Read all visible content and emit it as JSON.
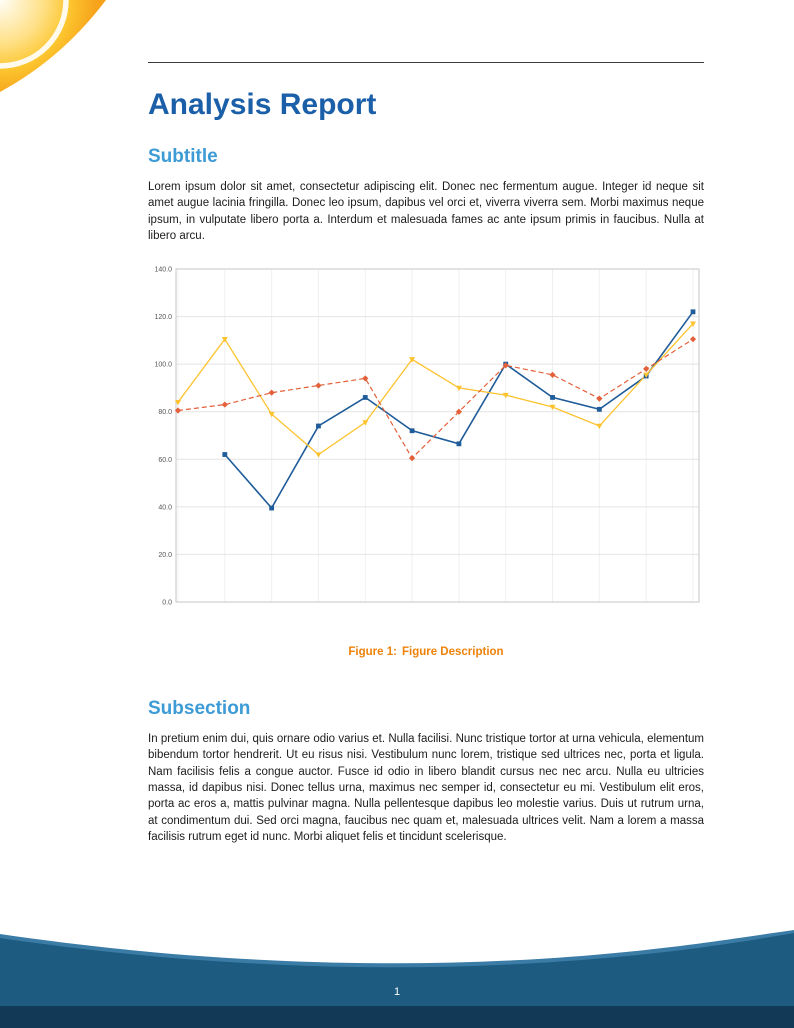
{
  "page": {
    "title": "Analysis Report",
    "page_number": "1"
  },
  "sections": [
    {
      "heading": "Subtitle",
      "body": "Lorem ipsum dolor sit amet, consectetur adipiscing elit. Donec nec fermentum augue. Integer id neque sit amet augue lacinia fringilla. Donec leo ipsum, dapibus vel orci et, viverra viverra sem. Morbi maximus neque ipsum, in vulputate libero porta a. Interdum et malesuada fames ac ante ipsum primis in faucibus. Nulla at libero arcu."
    },
    {
      "heading": "Subsection",
      "body": "In pretium enim dui, quis ornare odio varius et. Nulla facilisi. Nunc tristique tortor at urna vehicula, elementum bibendum tortor hendrerit. Ut eu risus nisi. Vestibulum nunc lorem, tristique sed ultrices nec, porta et ligula. Nam facilisis felis a congue auctor. Fusce id odio in libero blandit cursus nec nec arcu. Nulla eu ultricies massa, id dapibus nisi. Donec tellus urna, maximus nec semper id, consectetur eu mi. Vestibulum elit eros, porta ac eros a, mattis pulvinar magna. Nulla pellentesque dapibus leo molestie varius. Duis ut rutrum urna, at condimentum dui. Sed orci magna, faucibus nec quam et, malesuada ultrices velit. Nam a lorem a massa facilisis rutrum eget id nunc. Morbi aliquet felis et tincidunt scelerisque."
    }
  ],
  "figure": {
    "caption_label": "Figure 1:",
    "caption_text": "Figure Description"
  },
  "colors": {
    "title_blue": "#1b5fa8",
    "heading_blue": "#3d9bd6",
    "caption_orange": "#ee8209",
    "footer_wave": "#1d5c80",
    "footer_strip": "#123a57",
    "corner_orange": "#f6a21c",
    "corner_yellow": "#ffd44f"
  },
  "chart_data": {
    "type": "line",
    "title": "",
    "xlabel": "",
    "ylabel": "",
    "x": [
      1,
      2,
      3,
      4,
      5,
      6,
      7,
      8,
      9,
      10,
      11,
      12
    ],
    "ylim": [
      0,
      140
    ],
    "ytick_step": 20,
    "ytick_labels": [
      "0.0",
      "20.0",
      "40.0",
      "60.0",
      "80.0",
      "100.0",
      "120.0",
      "140.0"
    ],
    "grid": "both",
    "legend": "none",
    "series": [
      {
        "name": "series-blue",
        "color": "#1f5c99",
        "style": "solid",
        "marker": "square",
        "stroke_width": 1.6,
        "values": [
          null,
          62,
          39.5,
          74,
          86,
          72,
          66.5,
          100,
          86,
          81,
          95,
          122
        ]
      },
      {
        "name": "series-yellow",
        "color": "#fdc32f",
        "style": "solid",
        "marker": "triangle",
        "stroke_width": 1.3,
        "values": [
          84,
          110.5,
          79,
          62,
          75.5,
          102,
          90,
          87,
          82,
          74,
          95.5,
          117
        ]
      },
      {
        "name": "series-red",
        "color": "#e4603a",
        "style": "dashed",
        "marker": "diamond",
        "stroke_width": 1.2,
        "values": [
          80.5,
          83,
          88,
          91,
          94,
          60.5,
          80,
          99.5,
          95.5,
          85.5,
          98,
          110.5
        ]
      }
    ]
  }
}
